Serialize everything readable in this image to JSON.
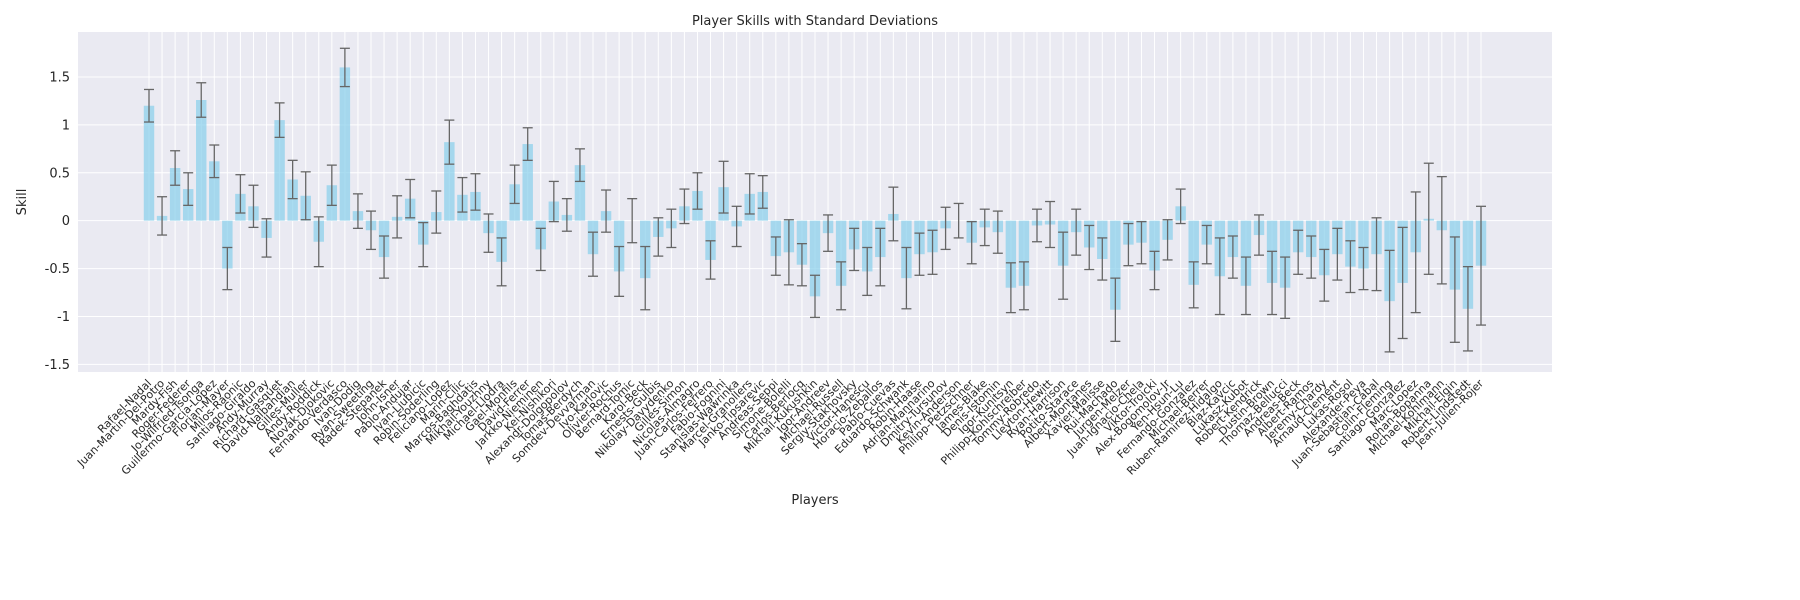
{
  "chart_data": {
    "type": "bar",
    "title": "Player Skills with Standard Deviations",
    "x_label": "Players",
    "y_label": "Skill",
    "categories": [
      "Rafael-Nadal",
      "Juan-Martin-Del-Potro",
      "Mardy-Fish",
      "Roger-Federer",
      "Jo-Wilfried-Tsonga",
      "Guillermo-Garcia-Lopez",
      "Florian-Mayer",
      "Milos-Raonic",
      "Santiago-Giraldo",
      "Andy-Murray",
      "Richard-Gasquet",
      "David-Nalbandian",
      "Gilles-Muller",
      "Andy-Roddick",
      "Novak-Djokovic",
      "Fernando-Verdasco",
      "Ivan-Dodig",
      "Ryan-Sweeting",
      "Radek-Stepanek",
      "John-Isner",
      "Pablo-Andujar",
      "Ivan-Ljubicic",
      "Robin-Soderling",
      "Feliciano-Lopez",
      "Marin-Cilic",
      "Marcos-Baghdatis",
      "Mikhail-Youzhny",
      "Michael-Llodra",
      "Gael-Monfils",
      "David-Ferrer",
      "Jarkko-Nieminen",
      "Kei-Nishikori",
      "Alexandr-Dolgopolov",
      "Tomas-Berdych",
      "Somdev-Devvarman",
      "Ivo-Karlovic",
      "Olivier-Rochus",
      "Bernard-Tomic",
      "Karol-Beck",
      "Ernests-Gulbis",
      "Nikolay-Davydenko",
      "Gilles-Simon",
      "Nicolas-Almagro",
      "Juan-Carlos-Ferrero",
      "Fabio-Fognini",
      "Stanislas-Wawrinka",
      "Marcel-Granollers",
      "Janko-Tipsarevic",
      "Andreas-Seppi",
      "Simone-Bolelli",
      "Carlos-Berlocq",
      "Mikhail-Kukushkin",
      "Igor-Andreev",
      "Michael-Russell",
      "Sergiy-Stakhovsky",
      "Victor-Hanescu",
      "Horacio-Zeballos",
      "Pablo-Cuevas",
      "Eduardo-Schwank",
      "Robin-Haase",
      "Adrian-Mannarino",
      "Dmitry-Tursunov",
      "Kevin-Anderson",
      "Philipp-Petzschner",
      "James-Blake",
      "Denis-Istomin",
      "Igor-Kunitsyn",
      "Philipp-Kohlschreiber",
      "Tommy-Robredo",
      "Lleyton-Hewitt",
      "Ryan-Harrison",
      "Potito-Starace",
      "Albert-Montanes",
      "Xavier-Malisse",
      "Rui-Machado",
      "Jurgen-Melzer",
      "Juan-Ignacio-Chela",
      "Viktor-Troicki",
      "Alex-Bogomolov-Jr",
      "Yen-Hsun-Lu",
      "Fernando-Gonzalez",
      "Michael-Berrer",
      "Ruben-Ramirez-Hidalgo",
      "Blaz-Kavcic",
      "Lukasz-Kubot",
      "Robert-Kendrick",
      "Dustin-Brown",
      "Thomaz-Bellucci",
      "Andreas-Beck",
      "Albert-Ramos",
      "Jeremy-Chardy",
      "Arnaud-Clement",
      "Lukas-Rosol",
      "Alexander-Peya",
      "Juan-Sebastian-Cabal",
      "Colin-Fleming",
      "Santiago-Gonzalez",
      "Marc-Lopez",
      "Rohan-Bopanna",
      "Michael-Kohlmann",
      "Mikhail-Elgin",
      "Robert-Lindstedt",
      "Jean-Julien-Rojer"
    ],
    "values": [
      1.2,
      0.05,
      0.55,
      0.33,
      1.26,
      0.62,
      -0.5,
      0.28,
      0.15,
      -0.18,
      1.05,
      0.43,
      0.26,
      -0.22,
      0.37,
      1.6,
      0.1,
      -0.1,
      -0.38,
      0.04,
      0.23,
      -0.25,
      0.09,
      0.82,
      0.27,
      0.3,
      -0.13,
      -0.43,
      0.38,
      0.8,
      -0.3,
      0.2,
      0.06,
      0.58,
      -0.35,
      0.1,
      -0.53,
      0.0,
      -0.6,
      -0.17,
      -0.08,
      0.15,
      0.31,
      -0.41,
      0.35,
      -0.06,
      0.28,
      0.3,
      -0.37,
      -0.33,
      -0.46,
      -0.79,
      -0.13,
      -0.68,
      -0.3,
      -0.53,
      -0.38,
      0.07,
      -0.6,
      -0.35,
      -0.33,
      -0.08,
      0.0,
      -0.23,
      -0.07,
      -0.12,
      -0.7,
      -0.68,
      -0.05,
      -0.04,
      -0.47,
      -0.12,
      -0.28,
      -0.4,
      -0.93,
      -0.25,
      -0.23,
      -0.52,
      -0.2,
      0.15,
      -0.67,
      -0.25,
      -0.58,
      -0.38,
      -0.68,
      -0.15,
      -0.65,
      -0.7,
      -0.33,
      -0.38,
      -0.57,
      -0.35,
      -0.48,
      -0.5,
      -0.35,
      -0.84,
      -0.65,
      -0.33,
      0.02,
      -0.1,
      -0.72,
      -0.92,
      -0.47
    ],
    "errors": [
      0.17,
      0.2,
      0.18,
      0.17,
      0.18,
      0.17,
      0.22,
      0.2,
      0.22,
      0.2,
      0.18,
      0.2,
      0.25,
      0.26,
      0.21,
      0.2,
      0.18,
      0.2,
      0.22,
      0.22,
      0.2,
      0.23,
      0.22,
      0.23,
      0.18,
      0.19,
      0.2,
      0.25,
      0.2,
      0.17,
      0.22,
      0.21,
      0.17,
      0.17,
      0.23,
      0.22,
      0.26,
      0.23,
      0.33,
      0.2,
      0.2,
      0.18,
      0.19,
      0.2,
      0.27,
      0.21,
      0.21,
      0.17,
      0.2,
      0.34,
      0.22,
      0.22,
      0.19,
      0.25,
      0.22,
      0.25,
      0.3,
      0.28,
      0.32,
      0.22,
      0.23,
      0.22,
      0.18,
      0.22,
      0.19,
      0.22,
      0.26,
      0.25,
      0.17,
      0.24,
      0.35,
      0.24,
      0.23,
      0.22,
      0.33,
      0.22,
      0.22,
      0.2,
      0.21,
      0.18,
      0.24,
      0.2,
      0.4,
      0.22,
      0.3,
      0.21,
      0.33,
      0.32,
      0.23,
      0.22,
      0.27,
      0.27,
      0.27,
      0.22,
      0.38,
      0.53,
      0.58,
      0.63,
      0.58,
      0.56,
      0.55,
      0.44,
      0.62
    ],
    "color": "#87ceeb",
    "error_color": "#666666",
    "ylim": [
      -1.58,
      1.97
    ],
    "yticks": [
      -1.5,
      -1.0,
      -0.5,
      0.0,
      0.5,
      1.0,
      1.5
    ],
    "grid": true
  }
}
